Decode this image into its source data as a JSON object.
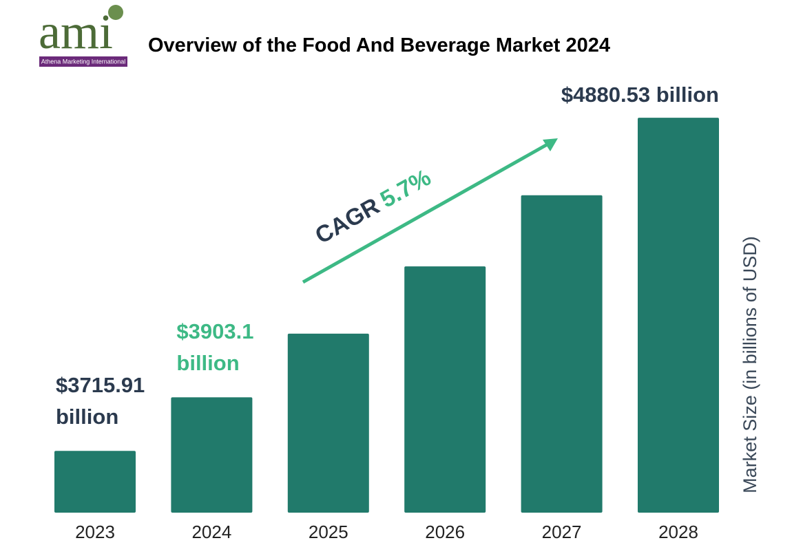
{
  "logo": {
    "mark": "ami",
    "caption": "Athena Marketing International"
  },
  "chart_data": {
    "type": "bar",
    "title": "Overview of the Food And Beverage Market 2024",
    "y_label": "Market Size (in billions of USD)",
    "categories": [
      "2023",
      "2024",
      "2025",
      "2026",
      "2027",
      "2028"
    ],
    "values": [
      3715.91,
      3903.1,
      4125.6,
      4360.8,
      4609.4,
      4880.53
    ],
    "value_labels": [
      "$3715.91 billion",
      "$3903.1 billion",
      null,
      null,
      null,
      "$4880.53 billion"
    ],
    "value_label_colors": [
      "#2b3a4e",
      "#3db985",
      null,
      null,
      null,
      "#2b3a4e"
    ],
    "color": "#217a6b",
    "ylim": [
      3500,
      4900
    ],
    "annotations": [
      "CAGR",
      "5.7%"
    ],
    "annotation_colors": [
      "#2b3a4e",
      "#3db985"
    ]
  }
}
